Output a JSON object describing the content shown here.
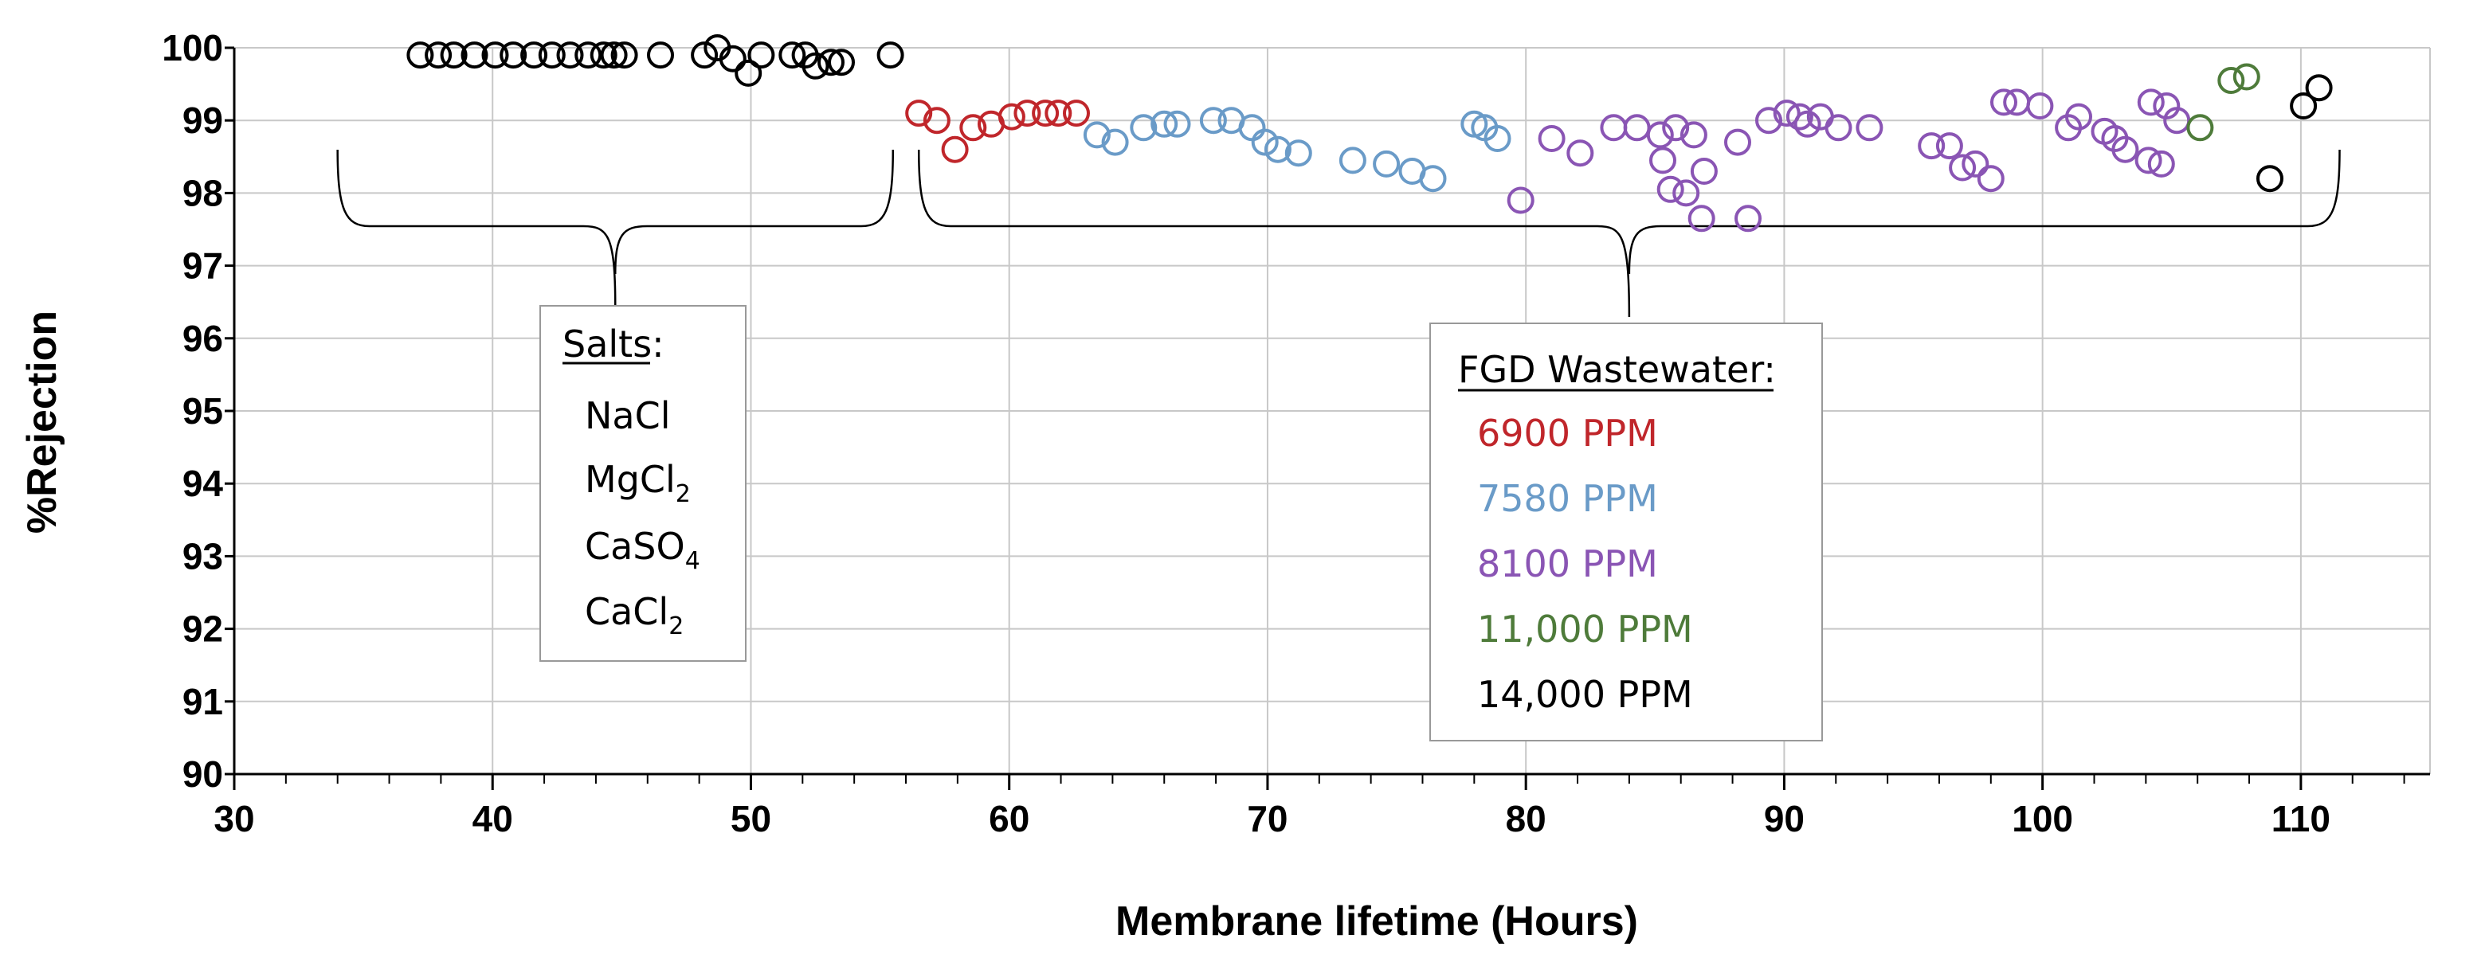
{
  "chart_data": {
    "type": "scatter",
    "title": "",
    "xlabel": "Membrane lifetime (Hours)",
    "ylabel": "%Rejection",
    "xlim": [
      30,
      115
    ],
    "ylim": [
      90,
      100
    ],
    "x_ticks": [
      "30",
      "40",
      "50",
      "60",
      "70",
      "80",
      "90",
      "100",
      "110"
    ],
    "y_ticks": [
      "90",
      "91",
      "92",
      "93",
      "94",
      "95",
      "96",
      "97",
      "98",
      "99",
      "100"
    ],
    "grid": true,
    "series": [
      {
        "name": "Salts",
        "color": "#000000",
        "points": [
          [
            37.2,
            99.9
          ],
          [
            37.9,
            99.9
          ],
          [
            38.5,
            99.9
          ],
          [
            39.3,
            99.9
          ],
          [
            40.1,
            99.9
          ],
          [
            40.8,
            99.9
          ],
          [
            41.6,
            99.9
          ],
          [
            42.3,
            99.9
          ],
          [
            43.0,
            99.9
          ],
          [
            43.7,
            99.9
          ],
          [
            44.3,
            99.9
          ],
          [
            44.7,
            99.9
          ],
          [
            45.1,
            99.9
          ],
          [
            46.5,
            99.9
          ],
          [
            48.2,
            99.9
          ],
          [
            48.7,
            100.0
          ],
          [
            49.3,
            99.85
          ],
          [
            49.9,
            99.65
          ],
          [
            50.4,
            99.9
          ],
          [
            51.6,
            99.9
          ],
          [
            52.1,
            99.9
          ],
          [
            52.5,
            99.75
          ],
          [
            53.1,
            99.8
          ],
          [
            53.5,
            99.8
          ],
          [
            55.4,
            99.9
          ]
        ]
      },
      {
        "name": "6900 PPM",
        "color": "#c0262b",
        "points": [
          [
            56.5,
            99.1
          ],
          [
            57.2,
            99.0
          ],
          [
            57.9,
            98.6
          ],
          [
            58.6,
            98.9
          ],
          [
            59.3,
            98.95
          ],
          [
            60.1,
            99.05
          ],
          [
            60.7,
            99.1
          ],
          [
            61.4,
            99.1
          ],
          [
            61.9,
            99.1
          ],
          [
            62.6,
            99.1
          ]
        ]
      },
      {
        "name": "7580 PPM",
        "color": "#6a9bc8",
        "points": [
          [
            63.4,
            98.8
          ],
          [
            64.1,
            98.7
          ],
          [
            65.2,
            98.9
          ],
          [
            66.0,
            98.95
          ],
          [
            66.5,
            98.95
          ],
          [
            67.9,
            99.0
          ],
          [
            68.6,
            99.0
          ],
          [
            69.4,
            98.9
          ],
          [
            69.9,
            98.7
          ],
          [
            70.4,
            98.6
          ],
          [
            71.2,
            98.55
          ],
          [
            73.3,
            98.45
          ],
          [
            74.6,
            98.4
          ],
          [
            75.6,
            98.3
          ],
          [
            76.4,
            98.2
          ],
          [
            78.0,
            98.95
          ],
          [
            78.4,
            98.9
          ],
          [
            78.9,
            98.75
          ]
        ]
      },
      {
        "name": "8100 PPM",
        "color": "#8a55b4",
        "points": [
          [
            79.8,
            97.9
          ],
          [
            81.0,
            98.75
          ],
          [
            82.1,
            98.55
          ],
          [
            83.4,
            98.9
          ],
          [
            84.3,
            98.9
          ],
          [
            85.2,
            98.8
          ],
          [
            85.3,
            98.45
          ],
          [
            85.6,
            98.05
          ],
          [
            85.8,
            98.9
          ],
          [
            86.2,
            98.0
          ],
          [
            86.5,
            98.8
          ],
          [
            86.8,
            97.65
          ],
          [
            86.9,
            98.3
          ],
          [
            88.2,
            98.7
          ],
          [
            88.6,
            97.65
          ],
          [
            89.4,
            99.0
          ],
          [
            90.1,
            99.1
          ],
          [
            90.6,
            99.05
          ],
          [
            90.9,
            98.95
          ],
          [
            91.4,
            99.05
          ],
          [
            92.1,
            98.9
          ],
          [
            93.3,
            98.9
          ],
          [
            95.7,
            98.65
          ],
          [
            96.4,
            98.65
          ],
          [
            96.9,
            98.35
          ],
          [
            97.4,
            98.4
          ],
          [
            98.0,
            98.2
          ],
          [
            98.5,
            99.25
          ],
          [
            99.0,
            99.25
          ],
          [
            99.9,
            99.2
          ],
          [
            101.0,
            98.9
          ],
          [
            101.4,
            99.05
          ],
          [
            102.4,
            98.85
          ],
          [
            102.8,
            98.75
          ],
          [
            103.2,
            98.6
          ],
          [
            104.1,
            98.45
          ],
          [
            104.2,
            99.25
          ],
          [
            104.6,
            98.4
          ],
          [
            104.8,
            99.2
          ],
          [
            105.2,
            99.0
          ]
        ]
      },
      {
        "name": "11,000 PPM",
        "color": "#4e7b3a",
        "points": [
          [
            106.1,
            98.9
          ],
          [
            107.3,
            99.55
          ],
          [
            107.9,
            99.6
          ]
        ]
      },
      {
        "name": "14,000 PPM",
        "color": "#000000",
        "points": [
          [
            108.8,
            98.2
          ],
          [
            110.1,
            99.2
          ],
          [
            110.7,
            99.45
          ]
        ]
      }
    ],
    "annotations": {
      "salts_box": {
        "header": "Salts",
        "header_suffix": ":",
        "items": [
          {
            "base": "NaCl",
            "sub": ""
          },
          {
            "base": "MgCl",
            "sub": "2"
          },
          {
            "base": "CaSO",
            "sub": "4"
          },
          {
            "base": "CaCl",
            "sub": "2"
          }
        ],
        "bracket_x_range": [
          34,
          55.5
        ]
      },
      "fgd_box": {
        "header": "FGD Wastewater:",
        "entries": [
          {
            "label": "6900 PPM",
            "color": "#c0262b"
          },
          {
            "label": "7580 PPM",
            "color": "#6a9bc8"
          },
          {
            "label": "8100 PPM",
            "color": "#8a55b4"
          },
          {
            "label": "11,000 PPM",
            "color": "#4e7b3a"
          },
          {
            "label": "14,000 PPM",
            "color": "#000000"
          }
        ],
        "bracket_x_range": [
          56.5,
          111.5
        ]
      }
    }
  }
}
